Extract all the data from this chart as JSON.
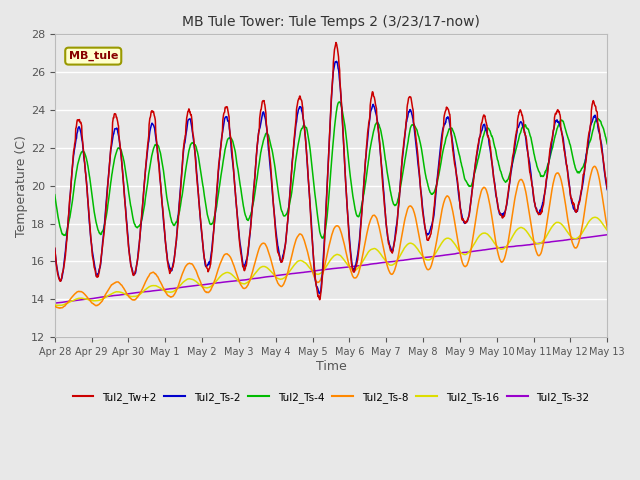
{
  "title": "MB Tule Tower: Tule Temps 2 (3/23/17-now)",
  "xlabel": "Time",
  "ylabel": "Temperature (C)",
  "ylim": [
    12,
    28
  ],
  "yticks": [
    12,
    14,
    16,
    18,
    20,
    22,
    24,
    26,
    28
  ],
  "background_color": "#e8e8e8",
  "plot_bg_color": "#e8e8e8",
  "line_colors": {
    "Tul2_Tw+2": "#cc0000",
    "Tul2_Ts-2": "#0000cc",
    "Tul2_Ts-4": "#00bb00",
    "Tul2_Ts-8": "#ff8800",
    "Tul2_Ts-16": "#dddd00",
    "Tul2_Ts-32": "#9900cc"
  },
  "legend_label": "MB_tule",
  "x_tick_labels": [
    "Apr 28",
    "Apr 29",
    "Apr 30",
    "May 1",
    "May 2",
    "May 3",
    "May 4",
    "May 5",
    "May 6",
    "May 7",
    "May 8",
    "May 9",
    "May 10",
    "May 11",
    "May 12",
    "May 13"
  ],
  "num_points": 1500
}
